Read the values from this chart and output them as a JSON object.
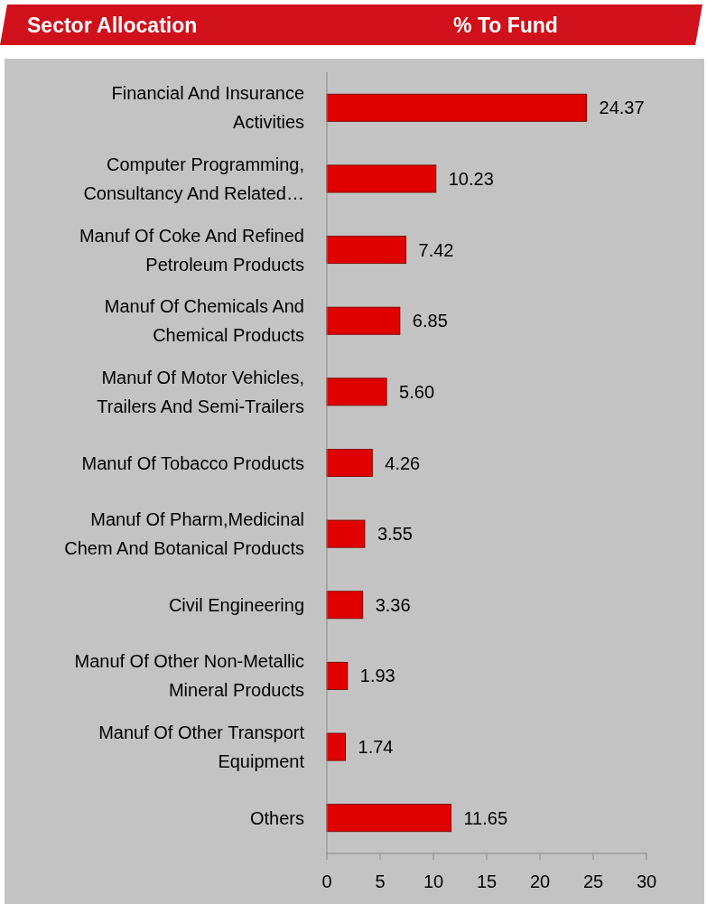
{
  "chart_data": {
    "type": "bar",
    "orientation": "horizontal",
    "title": "Sector Allocation",
    "subtitle": "% To Fund",
    "categories": [
      "Financial And Insurance\nActivities",
      "Computer Programming,\nConsultancy And Related…",
      "Manuf Of Coke And Refined\nPetroleum Products",
      "Manuf Of Chemicals And\nChemical Products",
      "Manuf Of Motor Vehicles,\nTrailers And Semi-Trailers",
      "Manuf Of Tobacco Products",
      "Manuf Of Pharm,Medicinal\nChem And Botanical Products",
      "Civil Engineering",
      "Manuf Of Other Non-Metallic\nMineral Products",
      "Manuf Of Other Transport\nEquipment",
      "Others"
    ],
    "values": [
      24.37,
      10.23,
      7.42,
      6.85,
      5.6,
      4.26,
      3.55,
      3.36,
      1.93,
      1.74,
      11.65
    ],
    "value_labels": [
      "24.37",
      "10.23",
      "7.42",
      "6.85",
      "5.60",
      "4.26",
      "3.55",
      "3.36",
      "1.93",
      "1.74",
      "11.65"
    ],
    "color": "#e00000",
    "xlim": [
      0,
      30
    ],
    "xticks": [
      0,
      5,
      10,
      15,
      20,
      25,
      30
    ]
  }
}
